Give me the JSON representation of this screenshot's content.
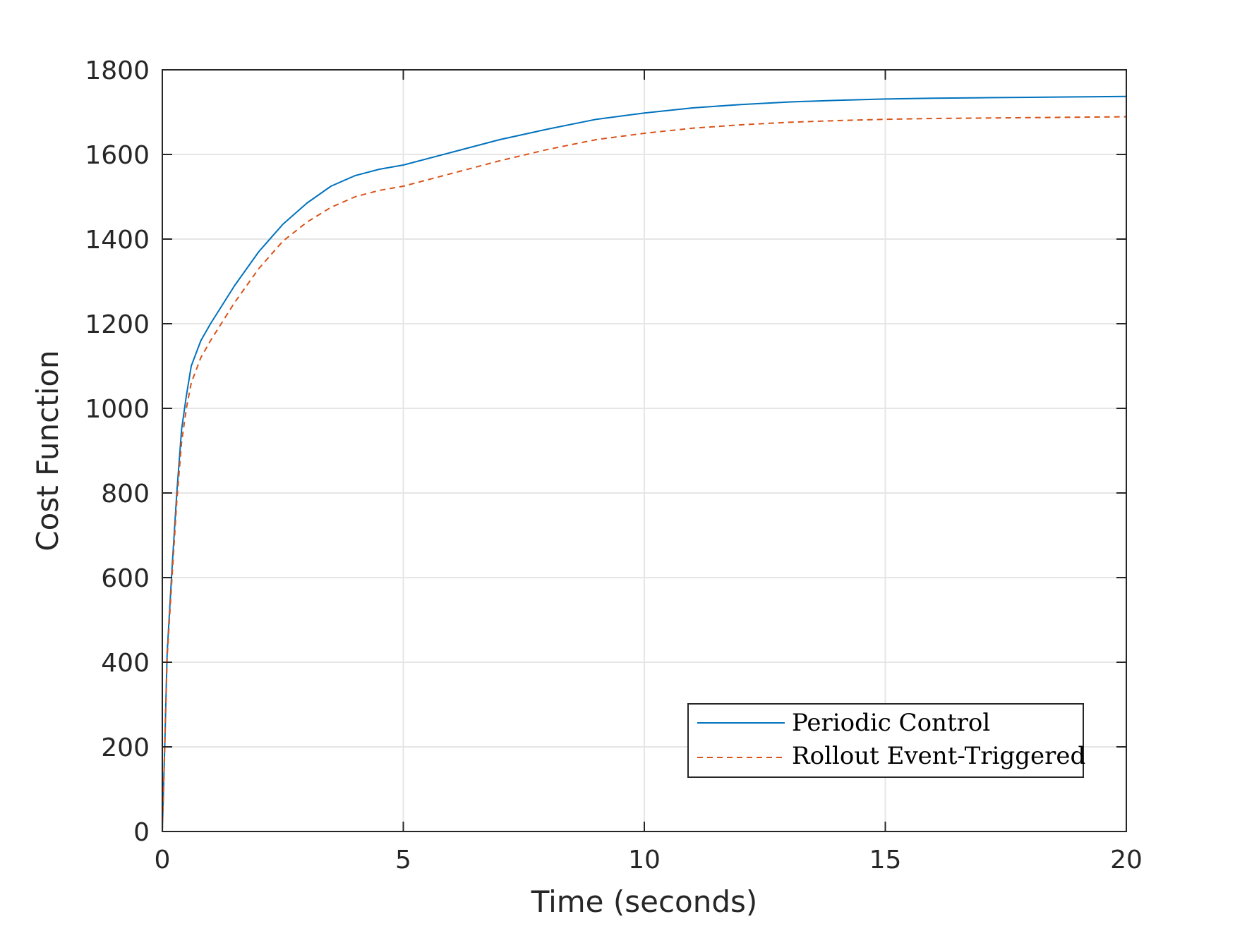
{
  "chart_data": {
    "type": "line",
    "xlabel": "Time (seconds)",
    "ylabel": "Cost Function",
    "xlim": [
      0,
      20
    ],
    "ylim": [
      0,
      1800
    ],
    "xticks": [
      0,
      5,
      10,
      15,
      20
    ],
    "yticks": [
      0,
      200,
      400,
      600,
      800,
      1000,
      1200,
      1400,
      1600,
      1800
    ],
    "grid": true,
    "legend_position": "bottom-right",
    "colors": {
      "periodic": "#0072BD",
      "rollout": "#D95319",
      "axis": "#262626",
      "grid": "#e6e6e6"
    },
    "series": [
      {
        "name": "Periodic Control",
        "style": "solid",
        "x": [
          0,
          0.05,
          0.1,
          0.2,
          0.3,
          0.4,
          0.5,
          0.6,
          0.8,
          1.0,
          1.5,
          2.0,
          2.5,
          3.0,
          3.5,
          4.0,
          4.5,
          5.0,
          6.0,
          7.0,
          8.0,
          9.0,
          10.0,
          11.0,
          12.0,
          13.0,
          14.0,
          15.0,
          16.0,
          17.0,
          18.0,
          19.0,
          20.0
        ],
        "y": [
          0,
          200,
          420,
          620,
          800,
          950,
          1030,
          1100,
          1160,
          1200,
          1290,
          1370,
          1435,
          1485,
          1525,
          1550,
          1565,
          1575,
          1605,
          1635,
          1660,
          1683,
          1698,
          1710,
          1718,
          1724,
          1728,
          1731,
          1733,
          1734,
          1735,
          1736,
          1737
        ]
      },
      {
        "name": "Rollout Event-Triggered",
        "style": "dashed",
        "x": [
          0,
          0.05,
          0.1,
          0.2,
          0.3,
          0.4,
          0.5,
          0.6,
          0.8,
          1.0,
          1.5,
          2.0,
          2.5,
          3.0,
          3.5,
          4.0,
          4.5,
          5.0,
          6.0,
          7.0,
          8.0,
          9.0,
          10.0,
          11.0,
          12.0,
          13.0,
          14.0,
          15.0,
          16.0,
          17.0,
          18.0,
          19.0,
          20.0
        ],
        "y": [
          0,
          195,
          410,
          600,
          780,
          920,
          1000,
          1060,
          1120,
          1160,
          1250,
          1330,
          1395,
          1440,
          1475,
          1500,
          1515,
          1525,
          1555,
          1585,
          1612,
          1635,
          1650,
          1662,
          1670,
          1676,
          1680,
          1683,
          1685,
          1686,
          1687,
          1688,
          1689
        ]
      }
    ]
  }
}
